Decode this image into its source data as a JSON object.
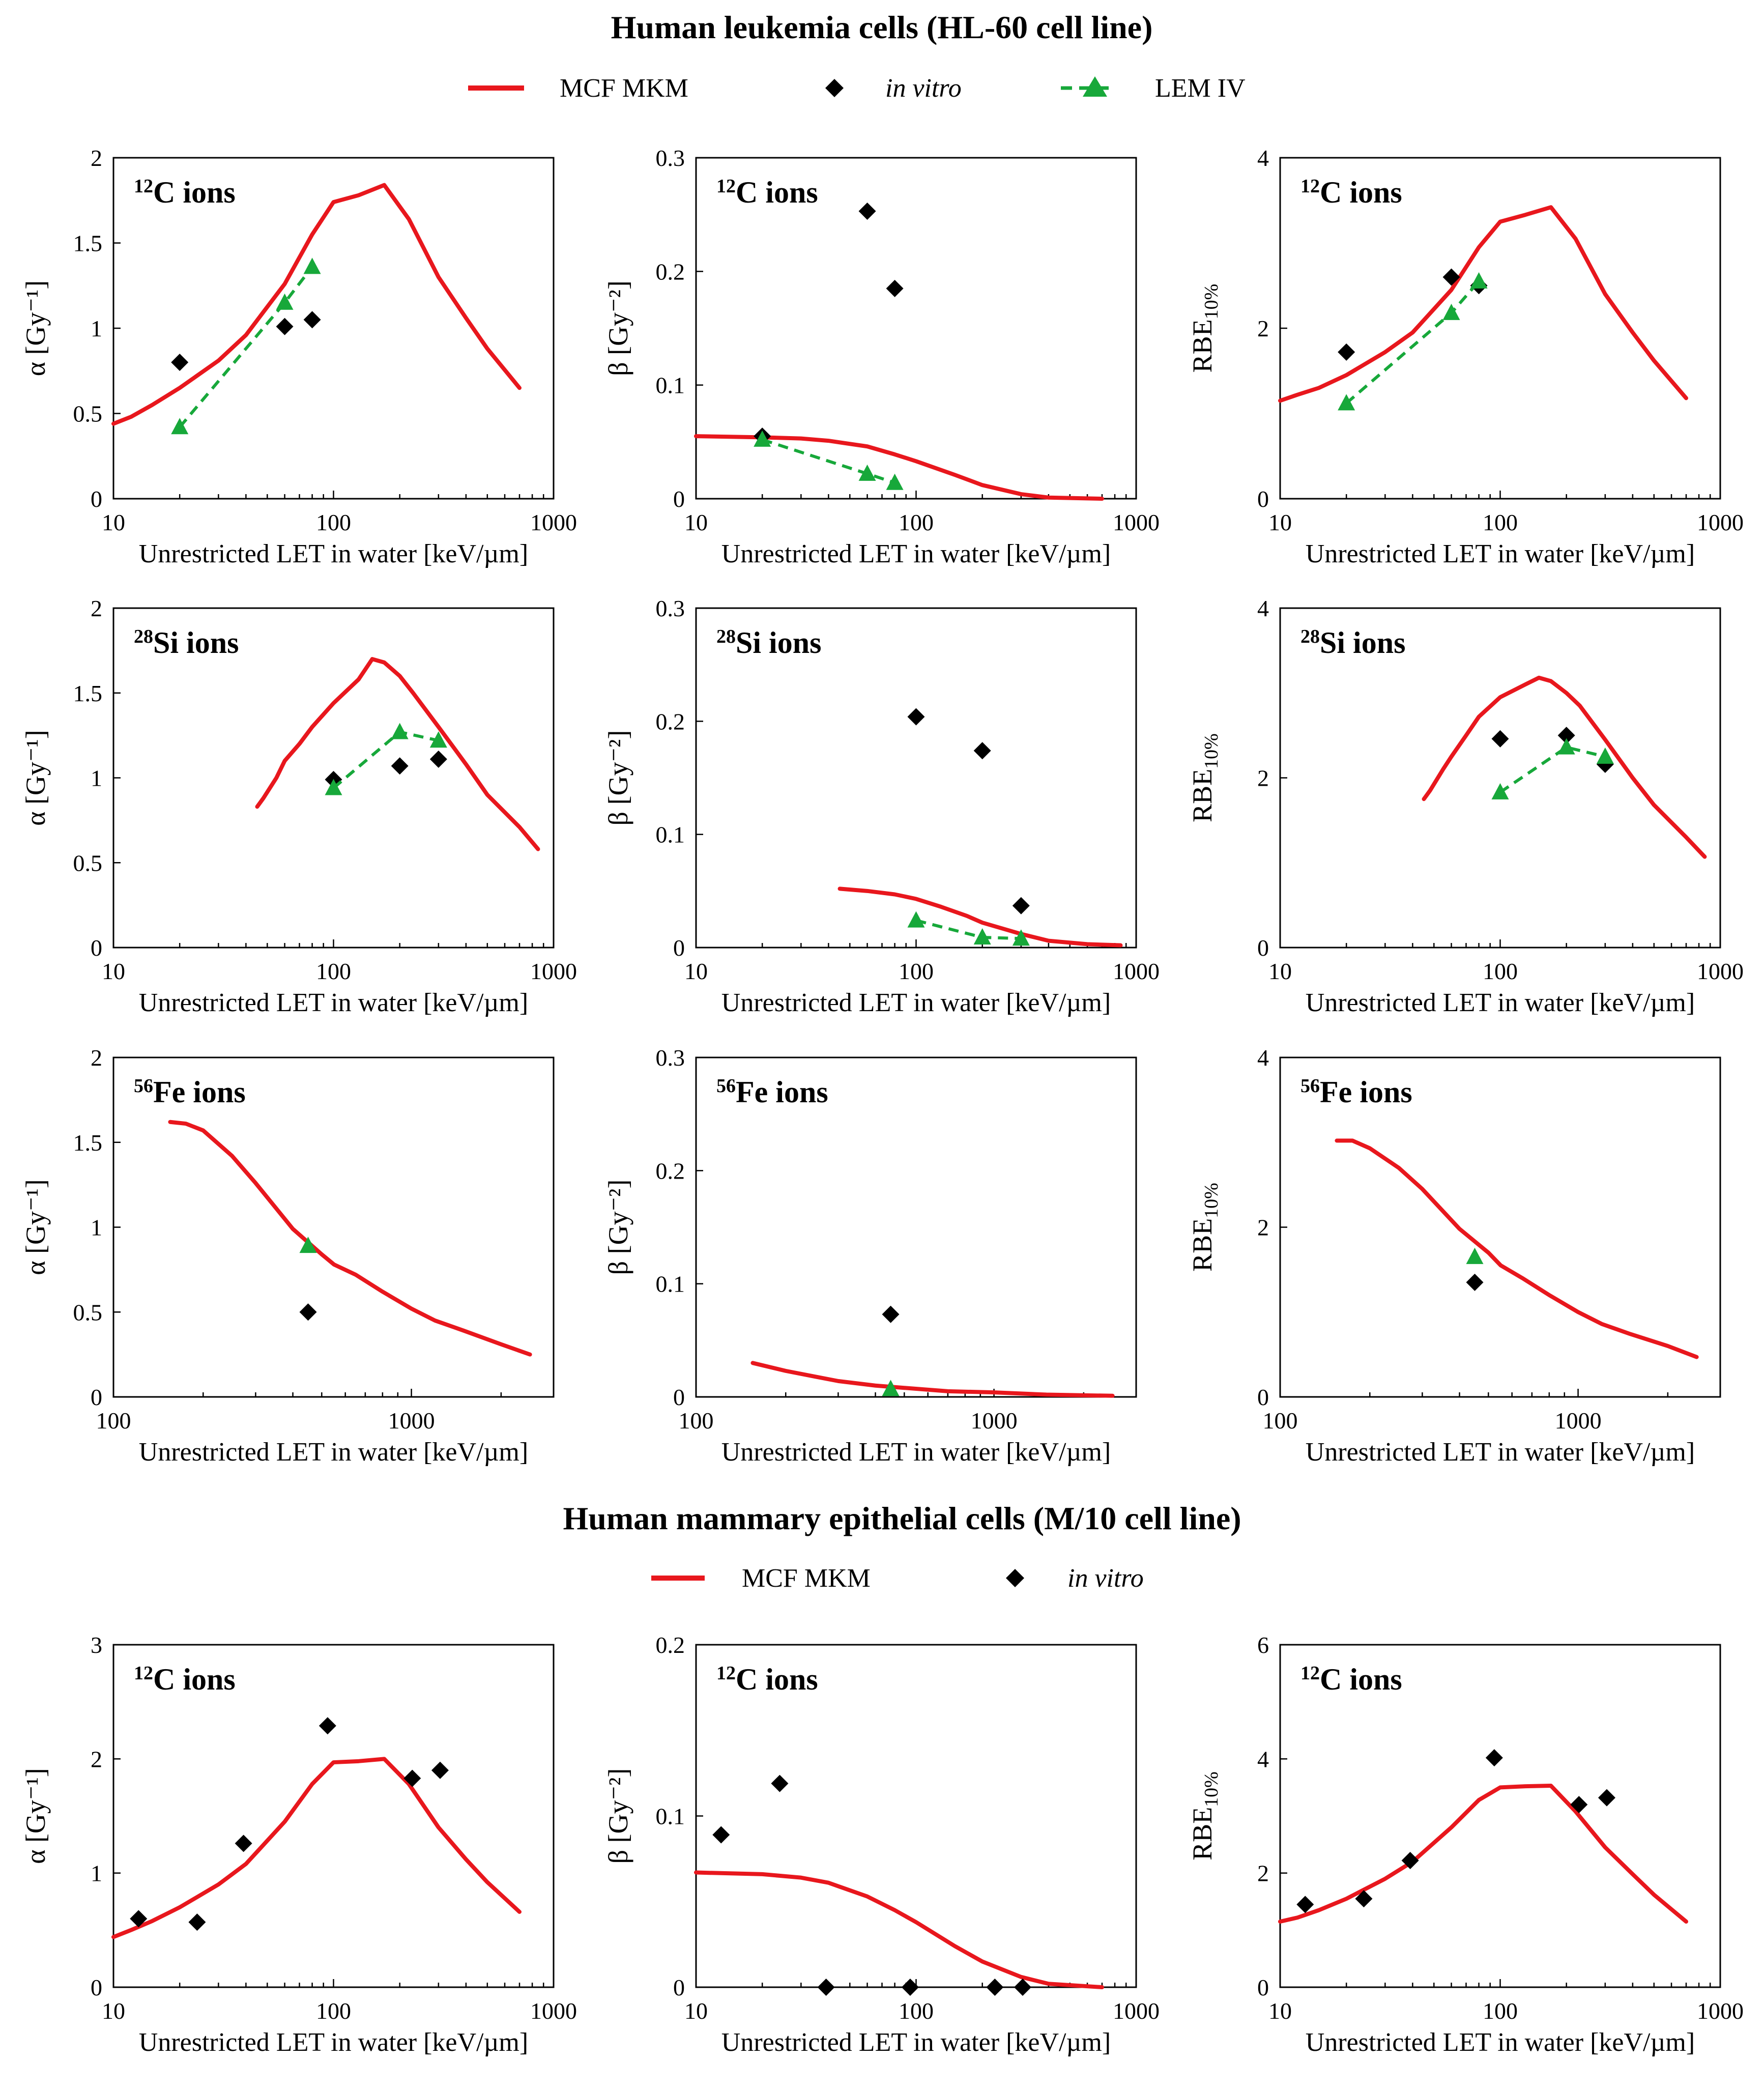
{
  "figure": {
    "title_top": "Human leukemia cells (HL-60 cell line)",
    "title_bottom": "Human mammary epithelial cells (M/10 cell line)",
    "legend_top": {
      "mkm": "MCF MKM",
      "vitro": "in vitro",
      "lem": "LEM IV"
    },
    "legend_bottom": {
      "mkm": "MCF MKM",
      "vitro": "in vitro"
    },
    "xlabel": "Unrestricted LET in water [keV/µm]",
    "ylabels": {
      "alpha": "α [Gy⁻¹]",
      "beta": "β [Gy⁻²]",
      "rbe": "RBE10%"
    }
  },
  "colors": {
    "mkm": "#e8171d",
    "lem": "#17a83a",
    "vitro": "#000000",
    "axis": "#000000"
  },
  "chart_data": [
    {
      "id": "hl60-c-alpha",
      "type": "line",
      "panel_label": "12C ions",
      "ion_sup": "12",
      "ion_name": "C ions",
      "ylabel_kind": "alpha",
      "xlog": true,
      "xlim": [
        10,
        1000
      ],
      "ylim": [
        0,
        2
      ],
      "xticks": [
        10,
        100,
        1000
      ],
      "yticks": [
        0,
        0.5,
        1,
        1.5,
        2
      ],
      "ytick_labels": [
        "0",
        "0.5",
        "1",
        "1.5",
        "2"
      ],
      "series": [
        {
          "name": "MCF MKM",
          "style": "mkm",
          "x": [
            10,
            12,
            15,
            20,
            30,
            40,
            60,
            80,
            100,
            130,
            170,
            220,
            300,
            400,
            500,
            700
          ],
          "y": [
            0.44,
            0.48,
            0.55,
            0.65,
            0.81,
            0.96,
            1.26,
            1.55,
            1.74,
            1.78,
            1.84,
            1.64,
            1.3,
            1.06,
            0.88,
            0.65
          ]
        },
        {
          "name": "in vitro",
          "style": "vitro",
          "x": [
            20,
            60,
            80
          ],
          "y": [
            0.8,
            1.01,
            1.05
          ]
        },
        {
          "name": "LEM IV",
          "style": "lem",
          "x": [
            20,
            60,
            80
          ],
          "y": [
            0.42,
            1.15,
            1.36
          ]
        }
      ]
    },
    {
      "id": "hl60-c-beta",
      "type": "line",
      "panel_label": "12C ions",
      "ion_sup": "12",
      "ion_name": "C ions",
      "ylabel_kind": "beta",
      "xlog": true,
      "xlim": [
        10,
        1000
      ],
      "ylim": [
        0,
        0.3
      ],
      "xticks": [
        10,
        100,
        1000
      ],
      "yticks": [
        0,
        0.1,
        0.2,
        0.3
      ],
      "ytick_labels": [
        "0",
        "0.1",
        "0.2",
        "0.3"
      ],
      "series": [
        {
          "name": "MCF MKM",
          "style": "mkm",
          "x": [
            10,
            20,
            30,
            40,
            60,
            80,
            100,
            150,
            200,
            300,
            400,
            700
          ],
          "y": [
            0.055,
            0.054,
            0.053,
            0.051,
            0.046,
            0.039,
            0.033,
            0.021,
            0.012,
            0.004,
            0.001,
            0.0
          ]
        },
        {
          "name": "in vitro",
          "style": "vitro",
          "x": [
            20,
            60,
            80
          ],
          "y": [
            0.055,
            0.253,
            0.185
          ]
        },
        {
          "name": "LEM IV",
          "style": "lem",
          "x": [
            20,
            60,
            80
          ],
          "y": [
            0.052,
            0.022,
            0.014
          ]
        }
      ]
    },
    {
      "id": "hl60-c-rbe",
      "type": "line",
      "panel_label": "12C ions",
      "ion_sup": "12",
      "ion_name": "C ions",
      "ylabel_kind": "rbe",
      "xlog": true,
      "xlim": [
        10,
        1000
      ],
      "ylim": [
        0,
        4
      ],
      "xticks": [
        10,
        100,
        1000
      ],
      "yticks": [
        0,
        2,
        4
      ],
      "ytick_labels": [
        "0",
        "2",
        "4"
      ],
      "series": [
        {
          "name": "MCF MKM",
          "style": "mkm",
          "x": [
            10,
            12,
            15,
            20,
            30,
            40,
            60,
            80,
            100,
            130,
            170,
            220,
            300,
            400,
            500,
            700
          ],
          "y": [
            1.15,
            1.22,
            1.3,
            1.45,
            1.72,
            1.95,
            2.45,
            2.95,
            3.25,
            3.33,
            3.42,
            3.05,
            2.4,
            1.95,
            1.62,
            1.18
          ]
        },
        {
          "name": "in vitro",
          "style": "vitro",
          "x": [
            20,
            60,
            80
          ],
          "y": [
            1.72,
            2.6,
            2.5
          ]
        },
        {
          "name": "LEM IV",
          "style": "lem",
          "x": [
            20,
            60,
            80
          ],
          "y": [
            1.12,
            2.18,
            2.55
          ]
        }
      ]
    },
    {
      "id": "hl60-si-alpha",
      "type": "line",
      "panel_label": "28Si ions",
      "ion_sup": "28",
      "ion_name": "Si ions",
      "ylabel_kind": "alpha",
      "xlog": true,
      "xlim": [
        10,
        1000
      ],
      "ylim": [
        0,
        2
      ],
      "xticks": [
        10,
        100,
        1000
      ],
      "yticks": [
        0,
        0.5,
        1,
        1.5,
        2
      ],
      "ytick_labels": [
        "0",
        "0.5",
        "1",
        "1.5",
        "2"
      ],
      "series": [
        {
          "name": "MCF MKM",
          "style": "mkm",
          "x": [
            45,
            48,
            55,
            60,
            70,
            80,
            100,
            130,
            150,
            170,
            200,
            230,
            300,
            400,
            500,
            700,
            850
          ],
          "y": [
            0.83,
            0.88,
            1.0,
            1.1,
            1.2,
            1.3,
            1.44,
            1.58,
            1.7,
            1.68,
            1.6,
            1.5,
            1.3,
            1.08,
            0.9,
            0.71,
            0.58
          ]
        },
        {
          "name": "in vitro",
          "style": "vitro",
          "x": [
            100,
            200,
            300
          ],
          "y": [
            0.99,
            1.07,
            1.11
          ]
        },
        {
          "name": "LEM IV",
          "style": "lem",
          "x": [
            100,
            200,
            300
          ],
          "y": [
            0.94,
            1.27,
            1.22
          ]
        }
      ]
    },
    {
      "id": "hl60-si-beta",
      "type": "line",
      "panel_label": "28Si ions",
      "ion_sup": "28",
      "ion_name": "Si ions",
      "ylabel_kind": "beta",
      "xlog": true,
      "xlim": [
        10,
        1000
      ],
      "ylim": [
        0,
        0.3
      ],
      "xticks": [
        10,
        100,
        1000
      ],
      "yticks": [
        0,
        0.1,
        0.2,
        0.3
      ],
      "ytick_labels": [
        "0",
        "0.1",
        "0.2",
        "0.3"
      ],
      "series": [
        {
          "name": "MCF MKM",
          "style": "mkm",
          "x": [
            45,
            60,
            80,
            100,
            130,
            170,
            200,
            300,
            400,
            600,
            850
          ],
          "y": [
            0.052,
            0.05,
            0.047,
            0.043,
            0.036,
            0.028,
            0.022,
            0.012,
            0.006,
            0.003,
            0.002
          ]
        },
        {
          "name": "in vitro",
          "style": "vitro",
          "x": [
            100,
            200,
            300
          ],
          "y": [
            0.204,
            0.174,
            0.037
          ]
        },
        {
          "name": "LEM IV",
          "style": "lem",
          "x": [
            100,
            200,
            300
          ],
          "y": [
            0.024,
            0.009,
            0.008
          ]
        }
      ]
    },
    {
      "id": "hl60-si-rbe",
      "type": "line",
      "panel_label": "28Si ions",
      "ion_sup": "28",
      "ion_name": "Si ions",
      "ylabel_kind": "rbe",
      "xlog": true,
      "xlim": [
        10,
        1000
      ],
      "ylim": [
        0,
        4
      ],
      "xticks": [
        10,
        100,
        1000
      ],
      "yticks": [
        0,
        2,
        4
      ],
      "ytick_labels": [
        "0",
        "2",
        "4"
      ],
      "series": [
        {
          "name": "MCF MKM",
          "style": "mkm",
          "x": [
            45,
            48,
            55,
            60,
            70,
            80,
            100,
            130,
            150,
            170,
            200,
            230,
            300,
            400,
            500,
            700,
            850
          ],
          "y": [
            1.75,
            1.85,
            2.1,
            2.25,
            2.5,
            2.72,
            2.95,
            3.1,
            3.18,
            3.14,
            3.0,
            2.85,
            2.45,
            2.0,
            1.68,
            1.3,
            1.07
          ]
        },
        {
          "name": "in vitro",
          "style": "vitro",
          "x": [
            100,
            200,
            300
          ],
          "y": [
            2.46,
            2.5,
            2.16
          ]
        },
        {
          "name": "LEM IV",
          "style": "lem",
          "x": [
            100,
            200,
            300
          ],
          "y": [
            1.83,
            2.36,
            2.25
          ]
        }
      ]
    },
    {
      "id": "hl60-fe-alpha",
      "type": "line",
      "panel_label": "56Fe ions",
      "ion_sup": "56",
      "ion_name": "Fe ions",
      "ylabel_kind": "alpha",
      "xlog": true,
      "xlim": [
        100,
        3000
      ],
      "ylim": [
        0,
        2
      ],
      "xticks": [
        100,
        1000
      ],
      "yticks": [
        0,
        0.5,
        1,
        1.5,
        2
      ],
      "ytick_labels": [
        "0",
        "0.5",
        "1",
        "1.5",
        "2"
      ],
      "series": [
        {
          "name": "MCF MKM",
          "style": "mkm",
          "x": [
            155,
            175,
            200,
            250,
            300,
            400,
            500,
            550,
            650,
            800,
            1000,
            1200,
            1500,
            2000,
            2500
          ],
          "y": [
            1.62,
            1.61,
            1.57,
            1.42,
            1.26,
            0.99,
            0.84,
            0.78,
            0.72,
            0.62,
            0.52,
            0.45,
            0.39,
            0.31,
            0.25
          ]
        },
        {
          "name": "in vitro",
          "style": "vitro",
          "x": [
            450
          ],
          "y": [
            0.5
          ]
        },
        {
          "name": "LEM IV",
          "style": "lem",
          "x": [
            450
          ],
          "y": [
            0.89
          ]
        }
      ]
    },
    {
      "id": "hl60-fe-beta",
      "type": "line",
      "panel_label": "56Fe ions",
      "ion_sup": "56",
      "ion_name": "Fe ions",
      "ylabel_kind": "beta",
      "xlog": true,
      "xlim": [
        100,
        3000
      ],
      "ylim": [
        0,
        0.3
      ],
      "xticks": [
        100,
        1000
      ],
      "yticks": [
        0,
        0.1,
        0.2,
        0.3
      ],
      "ytick_labels": [
        "0",
        "0.1",
        "0.2",
        "0.3"
      ],
      "series": [
        {
          "name": "MCF MKM",
          "style": "mkm",
          "x": [
            155,
            200,
            250,
            300,
            400,
            500,
            700,
            1000,
            1500,
            2500
          ],
          "y": [
            0.03,
            0.023,
            0.018,
            0.014,
            0.01,
            0.008,
            0.005,
            0.004,
            0.002,
            0.001
          ]
        },
        {
          "name": "in vitro",
          "style": "vitro",
          "x": [
            450
          ],
          "y": [
            0.073
          ]
        },
        {
          "name": "LEM IV",
          "style": "lem",
          "x": [
            450
          ],
          "y": [
            0.007
          ]
        }
      ]
    },
    {
      "id": "hl60-fe-rbe",
      "type": "line",
      "panel_label": "56Fe ions",
      "ion_sup": "56",
      "ion_name": "Fe ions",
      "ylabel_kind": "rbe",
      "xlog": true,
      "xlim": [
        100,
        3000
      ],
      "ylim": [
        0,
        4
      ],
      "xticks": [
        100,
        1000
      ],
      "yticks": [
        0,
        2,
        4
      ],
      "ytick_labels": [
        "0",
        "2",
        "4"
      ],
      "series": [
        {
          "name": "MCF MKM",
          "style": "mkm",
          "x": [
            155,
            175,
            200,
            250,
            300,
            400,
            500,
            550,
            650,
            800,
            1000,
            1200,
            1500,
            2000,
            2500
          ],
          "y": [
            3.02,
            3.02,
            2.93,
            2.7,
            2.45,
            1.98,
            1.7,
            1.55,
            1.4,
            1.2,
            1.0,
            0.86,
            0.74,
            0.6,
            0.47
          ]
        },
        {
          "name": "in vitro",
          "style": "vitro",
          "x": [
            450
          ],
          "y": [
            1.35
          ]
        },
        {
          "name": "LEM IV",
          "style": "lem",
          "x": [
            450
          ],
          "y": [
            1.65
          ]
        }
      ]
    },
    {
      "id": "m10-c-alpha",
      "type": "line",
      "panel_label": "12C ions",
      "ion_sup": "12",
      "ion_name": "C ions",
      "ylabel_kind": "alpha",
      "xlog": true,
      "xlim": [
        10,
        1000
      ],
      "ylim": [
        0,
        3
      ],
      "xticks": [
        10,
        100,
        1000
      ],
      "yticks": [
        0,
        1,
        2,
        3
      ],
      "ytick_labels": [
        "0",
        "1",
        "2",
        "3"
      ],
      "series": [
        {
          "name": "MCF MKM",
          "style": "mkm",
          "x": [
            10,
            12,
            15,
            20,
            30,
            40,
            60,
            80,
            100,
            130,
            170,
            220,
            300,
            400,
            500,
            700
          ],
          "y": [
            0.44,
            0.5,
            0.58,
            0.7,
            0.9,
            1.08,
            1.45,
            1.78,
            1.97,
            1.98,
            2.0,
            1.78,
            1.4,
            1.12,
            0.92,
            0.66
          ]
        },
        {
          "name": "in vitro",
          "style": "vitro",
          "x": [
            13,
            24,
            39,
            94,
            228,
            305
          ],
          "y": [
            0.6,
            0.57,
            1.26,
            2.29,
            1.83,
            1.9
          ]
        }
      ]
    },
    {
      "id": "m10-c-beta",
      "type": "line",
      "panel_label": "12C ions",
      "ion_sup": "12",
      "ion_name": "C ions",
      "ylabel_kind": "beta",
      "xlog": true,
      "xlim": [
        10,
        1000
      ],
      "ylim": [
        0,
        0.2
      ],
      "xticks": [
        10,
        100,
        1000
      ],
      "yticks": [
        0,
        0.1,
        0.2
      ],
      "ytick_labels": [
        "0",
        "0.1",
        "0.2"
      ],
      "series": [
        {
          "name": "MCF MKM",
          "style": "mkm",
          "x": [
            10,
            20,
            30,
            40,
            60,
            80,
            100,
            150,
            200,
            300,
            400,
            700
          ],
          "y": [
            0.067,
            0.066,
            0.064,
            0.061,
            0.053,
            0.045,
            0.038,
            0.024,
            0.015,
            0.006,
            0.002,
            0.0
          ]
        },
        {
          "name": "in vitro",
          "style": "vitro",
          "x": [
            13,
            24,
            39,
            94,
            228,
            305
          ],
          "y": [
            0.089,
            0.119,
            0.0,
            0.0,
            0.0,
            0.0
          ]
        }
      ]
    },
    {
      "id": "m10-c-rbe",
      "type": "line",
      "panel_label": "12C ions",
      "ion_sup": "12",
      "ion_name": "C ions",
      "ylabel_kind": "rbe",
      "xlog": true,
      "xlim": [
        10,
        1000
      ],
      "ylim": [
        0,
        6
      ],
      "xticks": [
        10,
        100,
        1000
      ],
      "yticks": [
        0,
        2,
        4,
        6
      ],
      "ytick_labels": [
        "0",
        "2",
        "4",
        "6"
      ],
      "series": [
        {
          "name": "MCF MKM",
          "style": "mkm",
          "x": [
            10,
            12,
            15,
            20,
            30,
            40,
            60,
            80,
            100,
            130,
            170,
            220,
            300,
            400,
            500,
            700
          ],
          "y": [
            1.15,
            1.22,
            1.35,
            1.55,
            1.9,
            2.2,
            2.8,
            3.28,
            3.5,
            3.52,
            3.53,
            3.08,
            2.45,
            1.98,
            1.62,
            1.15
          ]
        },
        {
          "name": "in vitro",
          "style": "vitro",
          "x": [
            13,
            24,
            39,
            94,
            228,
            305
          ],
          "y": [
            1.45,
            1.55,
            2.22,
            4.02,
            3.2,
            3.32
          ]
        }
      ]
    }
  ]
}
